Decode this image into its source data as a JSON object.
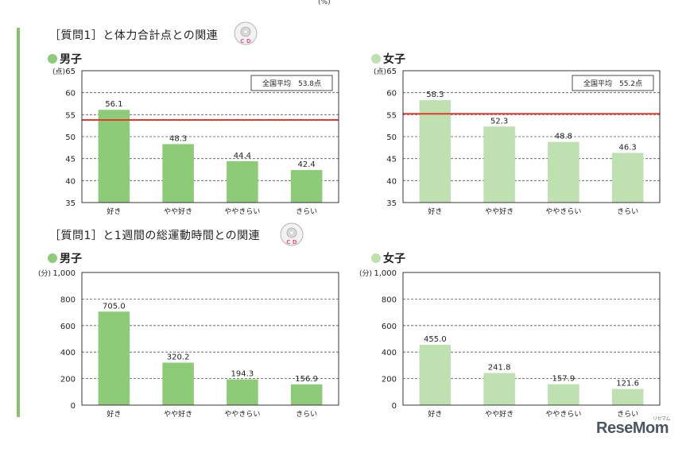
{
  "page": {
    "percent_unit": "(%)",
    "watermark": "ReseMom",
    "watermark_small": "リセマム"
  },
  "sections": [
    {
      "title": "［質問1］と体力合計点との関連",
      "icon": "cd-icon",
      "icon_label": "C D"
    },
    {
      "title": "［質問1］と1週間の総運動時間との関連",
      "icon": "cd-icon",
      "icon_label": "C D"
    }
  ],
  "colors": {
    "male": "#8dcb78",
    "female": "#bfe0b0",
    "average_line": "#e03a2f",
    "accent_bar": "#86c36d"
  },
  "chart_data": [
    {
      "type": "bar",
      "gender": "男子",
      "categories": [
        "好き",
        "やや好き",
        "ややきらい",
        "きらい"
      ],
      "values": [
        56.1,
        48.3,
        44.4,
        42.4
      ],
      "value_labels": [
        "56.1",
        "48.3",
        "44.4",
        "42.4"
      ],
      "ylim": [
        35,
        65
      ],
      "yticks": [
        35,
        40,
        45,
        50,
        55,
        60,
        65
      ],
      "ytick_labels": [
        "35",
        "40",
        "45",
        "50",
        "55",
        "60",
        "65"
      ],
      "unit": "(点)",
      "grid": "dashed",
      "average": 53.8,
      "average_label": "全国平均　53.8点",
      "legend": "top-right",
      "color": "#8dcb78"
    },
    {
      "type": "bar",
      "gender": "女子",
      "categories": [
        "好き",
        "やや好き",
        "ややきらい",
        "きらい"
      ],
      "values": [
        58.3,
        52.3,
        48.8,
        46.3
      ],
      "value_labels": [
        "58.3",
        "52.3",
        "48.8",
        "46.3"
      ],
      "ylim": [
        35,
        65
      ],
      "yticks": [
        35,
        40,
        45,
        50,
        55,
        60,
        65
      ],
      "ytick_labels": [
        "35",
        "40",
        "45",
        "50",
        "55",
        "60",
        "65"
      ],
      "unit": "(点)",
      "grid": "dashed",
      "average": 55.2,
      "average_label": "全国平均　55.2点",
      "legend": "top-right",
      "color": "#bfe0b0"
    },
    {
      "type": "bar",
      "gender": "男子",
      "categories": [
        "好き",
        "やや好き",
        "ややきらい",
        "きらい"
      ],
      "values": [
        705.0,
        320.2,
        194.3,
        156.9
      ],
      "value_labels": [
        "705.0",
        "320.2",
        "194.3",
        "156.9"
      ],
      "ylim": [
        0,
        1000
      ],
      "yticks": [
        0,
        200,
        400,
        600,
        800,
        1000
      ],
      "ytick_labels": [
        "0",
        "200",
        "400",
        "600",
        "800",
        "1,000"
      ],
      "unit": "(分)",
      "grid": "dashed",
      "color": "#8dcb78"
    },
    {
      "type": "bar",
      "gender": "女子",
      "categories": [
        "好き",
        "やや好き",
        "ややきらい",
        "きらい"
      ],
      "values": [
        455.0,
        241.8,
        157.9,
        121.6
      ],
      "value_labels": [
        "455.0",
        "241.8",
        "157.9",
        "121.6"
      ],
      "ylim": [
        0,
        1000
      ],
      "yticks": [
        0,
        200,
        400,
        600,
        800,
        1000
      ],
      "ytick_labels": [
        "0",
        "200",
        "400",
        "600",
        "800",
        "1,000"
      ],
      "unit": "(分)",
      "grid": "dashed",
      "color": "#bfe0b0"
    }
  ]
}
